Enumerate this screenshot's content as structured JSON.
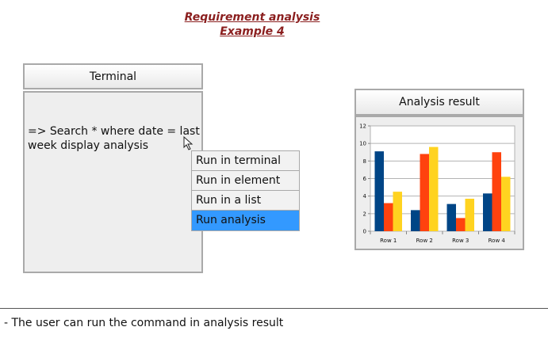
{
  "title": {
    "line1": "Requirement analysis",
    "line2": "Example 4"
  },
  "terminal": {
    "header": "Terminal",
    "command": "=> Search * where date = last week display analysis"
  },
  "context_menu": {
    "items": [
      {
        "label": "Run in terminal",
        "selected": false
      },
      {
        "label": "Run in element",
        "selected": false
      },
      {
        "label": "Run in a list",
        "selected": false
      },
      {
        "label": "Run analysis",
        "selected": true
      }
    ]
  },
  "result_panel": {
    "header": "Analysis result"
  },
  "chart_data": {
    "type": "bar",
    "categories": [
      "Row 1",
      "Row 2",
      "Row 3",
      "Row 4"
    ],
    "series": [
      {
        "values": [
          9.1,
          2.4,
          3.1,
          4.3
        ],
        "color": "#004586"
      },
      {
        "values": [
          3.2,
          8.8,
          1.5,
          9.0
        ],
        "color": "#ff420e"
      },
      {
        "values": [
          4.5,
          9.6,
          3.7,
          6.2
        ],
        "color": "#ffd320"
      }
    ],
    "yticks": [
      0,
      2,
      4,
      6,
      8,
      10,
      12
    ],
    "ylim": [
      0,
      12
    ],
    "grid": true
  },
  "footer": {
    "note": "- The user can run the command in analysis result"
  }
}
